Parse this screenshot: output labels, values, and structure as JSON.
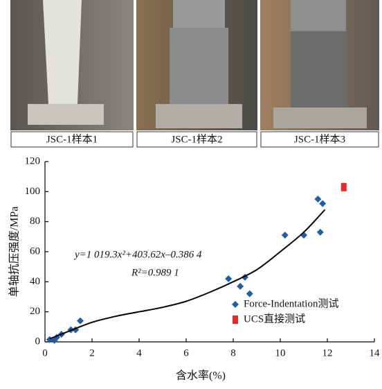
{
  "photos": [
    {
      "caption": "JSC-1样本1"
    },
    {
      "caption": "JSC-1样本2"
    },
    {
      "caption": "JSC-1样本3"
    }
  ],
  "chart_data": {
    "type": "scatter",
    "xlabel": "含水率(%)",
    "ylabel": "单轴抗压强度/MPa",
    "xlim": [
      0,
      14
    ],
    "xticks": [
      0,
      2,
      4,
      6,
      8,
      10,
      12,
      14
    ],
    "ylim": [
      0,
      120
    ],
    "yticks": [
      0,
      20,
      40,
      60,
      80,
      100,
      120
    ],
    "legend": "lower right",
    "annotations": [
      "y=1 019.3x²+403.62x–0.386 4",
      "R²=0.989 1"
    ],
    "series": [
      {
        "name": "Force-Indentation测试",
        "color": "#1f5fa8",
        "marker": "diamond",
        "x": [
          0.2,
          0.4,
          0.5,
          0.7,
          1.1,
          1.3,
          1.5,
          7.8,
          8.3,
          8.5,
          8.7,
          10.2,
          11.0,
          11.6,
          11.7,
          11.8
        ],
        "values": [
          1.5,
          1,
          3,
          5,
          8,
          8,
          14,
          42,
          37,
          43,
          32,
          71,
          71,
          95,
          73,
          92
        ]
      },
      {
        "name": "UCS直接测试",
        "color": "#e8262b",
        "marker": "square",
        "x": [
          12.7
        ],
        "values": [
          103
        ]
      },
      {
        "color": "#000000",
        "marker": "none",
        "x": [
          0.2,
          1,
          2,
          3,
          4,
          5,
          6,
          7,
          8,
          9,
          10,
          11,
          11.9
        ],
        "values": [
          2,
          7,
          13,
          17,
          20,
          23,
          27,
          33,
          40,
          48,
          60,
          73,
          88
        ]
      }
    ]
  }
}
